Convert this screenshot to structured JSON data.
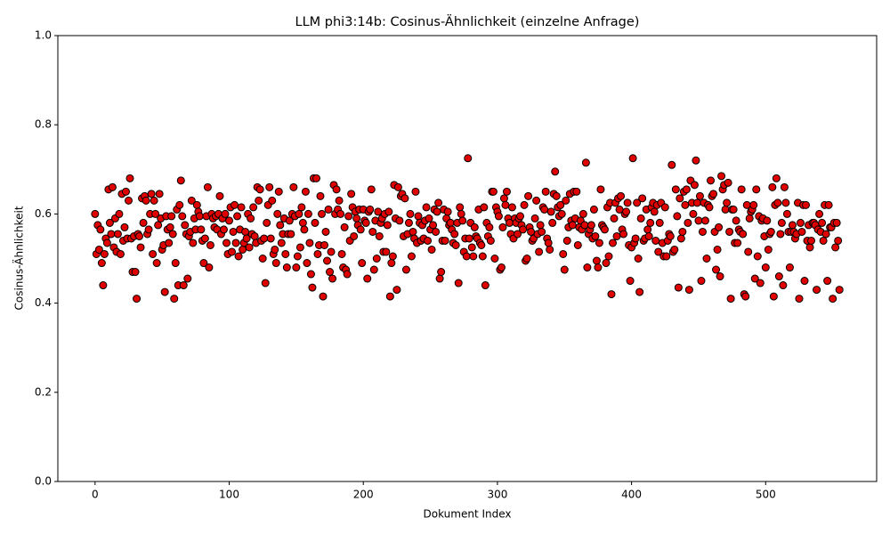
{
  "chart_data": {
    "type": "scatter",
    "title": "LLM phi3:14b: Cosinus-Ähnlichkeit (einzelne Anfrage)",
    "x_label": "Dokument Index",
    "y_label": "Cosinus-Ähnlichkeit",
    "color": "#e00000",
    "edge_color": "#000000",
    "xlim": [
      -27.75,
      582.75
    ],
    "xticks": [
      0,
      100,
      200,
      300,
      400,
      500
    ],
    "ylim": [
      0,
      1
    ],
    "yticks": [
      {
        "value": 0,
        "label": "0.0"
      },
      0.2,
      0.4,
      0.6,
      0.8,
      {
        "value": 1,
        "label": "1.0"
      }
    ],
    "x": [
      0,
      1,
      2,
      3,
      4,
      5,
      6,
      7,
      8,
      9,
      10,
      11,
      12,
      13,
      14,
      15,
      16,
      17,
      18,
      19,
      20,
      21,
      22,
      23,
      24,
      25,
      26,
      27,
      28,
      29,
      30,
      31,
      32,
      33,
      34,
      35,
      36,
      37,
      38,
      39,
      40,
      41,
      42,
      43,
      44,
      45,
      46,
      47,
      48,
      49,
      50,
      51,
      52,
      53,
      54,
      55,
      56,
      57,
      58,
      59,
      60,
      61,
      62,
      63,
      64,
      65,
      66,
      67,
      68,
      69,
      70,
      71,
      72,
      73,
      74,
      75,
      76,
      77,
      78,
      79,
      80,
      81,
      82,
      83,
      84,
      85,
      86,
      87,
      88,
      89,
      90,
      91,
      92,
      93,
      94,
      95,
      96,
      97,
      98,
      99,
      100,
      101,
      102,
      103,
      104,
      105,
      106,
      107,
      108,
      109,
      110,
      111,
      112,
      113,
      114,
      115,
      116,
      117,
      118,
      119,
      120,
      121,
      122,
      123,
      124,
      125,
      126,
      127,
      128,
      129,
      130,
      131,
      132,
      133,
      134,
      135,
      136,
      137,
      138,
      139,
      140,
      141,
      142,
      143,
      144,
      145,
      146,
      147,
      148,
      149,
      150,
      151,
      152,
      153,
      154,
      155,
      156,
      157,
      158,
      159,
      160,
      161,
      162,
      163,
      164,
      165,
      166,
      167,
      168,
      169,
      170,
      171,
      172,
      173,
      174,
      175,
      176,
      177,
      178,
      179,
      180,
      181,
      182,
      183,
      184,
      185,
      186,
      187,
      188,
      189,
      190,
      191,
      192,
      193,
      194,
      195,
      196,
      197,
      198,
      199,
      200,
      201,
      202,
      203,
      204,
      205,
      206,
      207,
      208,
      209,
      210,
      211,
      212,
      213,
      214,
      215,
      216,
      217,
      218,
      219,
      220,
      221,
      222,
      223,
      224,
      225,
      226,
      227,
      228,
      229,
      230,
      231,
      232,
      233,
      234,
      235,
      236,
      237,
      238,
      239,
      240,
      241,
      242,
      243,
      244,
      245,
      246,
      247,
      248,
      249,
      250,
      251,
      252,
      253,
      254,
      255,
      256,
      257,
      258,
      259,
      260,
      261,
      262,
      263,
      264,
      265,
      266,
      267,
      268,
      269,
      270,
      271,
      272,
      273,
      274,
      275,
      276,
      277,
      278,
      279,
      280,
      281,
      282,
      283,
      284,
      285,
      286,
      287,
      288,
      289,
      290,
      291,
      292,
      293,
      294,
      295,
      296,
      297,
      298,
      299,
      300,
      301,
      302,
      303,
      304,
      305,
      306,
      307,
      308,
      309,
      310,
      311,
      312,
      313,
      314,
      315,
      316,
      317,
      318,
      319,
      320,
      321,
      322,
      323,
      324,
      325,
      326,
      327,
      328,
      329,
      330,
      331,
      332,
      333,
      334,
      335,
      336,
      337,
      338,
      339,
      340,
      341,
      342,
      343,
      344,
      345,
      346,
      347,
      348,
      349,
      350,
      351,
      352,
      353,
      354,
      355,
      356,
      357,
      358,
      359,
      360,
      361,
      362,
      363,
      364,
      365,
      366,
      367,
      368,
      369,
      370,
      371,
      372,
      373,
      374,
      375,
      376,
      377,
      378,
      379,
      380,
      381,
      382,
      383,
      384,
      385,
      386,
      387,
      388,
      389,
      390,
      391,
      392,
      393,
      394,
      395,
      396,
      397,
      398,
      399,
      400,
      401,
      402,
      403,
      404,
      405,
      406,
      407,
      408,
      409,
      410,
      411,
      412,
      413,
      414,
      415,
      416,
      417,
      418,
      419,
      420,
      421,
      422,
      423,
      424,
      425,
      426,
      427,
      428,
      429,
      430,
      431,
      432,
      433,
      434,
      435,
      436,
      437,
      438,
      439,
      440,
      441,
      442,
      443,
      444,
      445,
      446,
      447,
      448,
      449,
      450,
      451,
      452,
      453,
      454,
      455,
      456,
      457,
      458,
      459,
      460,
      461,
      462,
      463,
      464,
      465,
      466,
      467,
      468,
      469,
      470,
      471,
      472,
      473,
      474,
      475,
      476,
      477,
      478,
      479,
      480,
      481,
      482,
      483,
      484,
      485,
      486,
      487,
      488,
      489,
      490,
      491,
      492,
      493,
      494,
      495,
      496,
      497,
      498,
      499,
      500,
      501,
      502,
      503,
      504,
      505,
      506,
      507,
      508,
      509,
      510,
      511,
      512,
      513,
      514,
      515,
      516,
      517,
      518,
      519,
      520,
      521,
      522,
      523,
      524,
      525,
      526,
      527,
      528,
      529,
      530,
      531,
      532,
      533,
      534,
      535,
      536,
      537,
      538,
      539,
      540,
      541,
      542,
      543,
      544,
      545,
      546,
      547,
      548,
      549,
      550,
      551,
      552,
      553,
      554,
      555
    ],
    "values": [
      0.6,
      0.51,
      0.575,
      0.52,
      0.565,
      0.49,
      0.44,
      0.51,
      0.545,
      0.535,
      0.655,
      0.58,
      0.555,
      0.66,
      0.525,
      0.59,
      0.515,
      0.555,
      0.6,
      0.51,
      0.645,
      0.54,
      0.57,
      0.65,
      0.545,
      0.63,
      0.68,
      0.545,
      0.47,
      0.55,
      0.47,
      0.41,
      0.555,
      0.55,
      0.525,
      0.635,
      0.58,
      0.64,
      0.63,
      0.555,
      0.565,
      0.6,
      0.645,
      0.51,
      0.63,
      0.6,
      0.49,
      0.575,
      0.645,
      0.59,
      0.52,
      0.53,
      0.425,
      0.595,
      0.565,
      0.535,
      0.57,
      0.595,
      0.555,
      0.41,
      0.49,
      0.61,
      0.44,
      0.62,
      0.675,
      0.595,
      0.44,
      0.575,
      0.555,
      0.455,
      0.55,
      0.56,
      0.63,
      0.535,
      0.59,
      0.565,
      0.62,
      0.605,
      0.595,
      0.565,
      0.54,
      0.49,
      0.545,
      0.595,
      0.66,
      0.48,
      0.53,
      0.6,
      0.59,
      0.57,
      0.595,
      0.565,
      0.6,
      0.64,
      0.555,
      0.59,
      0.565,
      0.6,
      0.535,
      0.51,
      0.585,
      0.615,
      0.515,
      0.56,
      0.62,
      0.535,
      0.595,
      0.505,
      0.565,
      0.615,
      0.52,
      0.535,
      0.56,
      0.545,
      0.6,
      0.525,
      0.59,
      0.555,
      0.615,
      0.55,
      0.535,
      0.66,
      0.63,
      0.655,
      0.54,
      0.5,
      0.545,
      0.445,
      0.58,
      0.62,
      0.66,
      0.545,
      0.63,
      0.51,
      0.52,
      0.49,
      0.6,
      0.65,
      0.575,
      0.535,
      0.555,
      0.59,
      0.51,
      0.48,
      0.555,
      0.585,
      0.555,
      0.6,
      0.66,
      0.595,
      0.48,
      0.505,
      0.6,
      0.525,
      0.615,
      0.58,
      0.565,
      0.65,
      0.49,
      0.6,
      0.535,
      0.465,
      0.435,
      0.68,
      0.58,
      0.68,
      0.51,
      0.53,
      0.64,
      0.6,
      0.415,
      0.53,
      0.56,
      0.495,
      0.61,
      0.47,
      0.515,
      0.455,
      0.665,
      0.6,
      0.655,
      0.61,
      0.63,
      0.6,
      0.51,
      0.48,
      0.57,
      0.475,
      0.465,
      0.595,
      0.54,
      0.645,
      0.615,
      0.55,
      0.605,
      0.59,
      0.575,
      0.61,
      0.565,
      0.49,
      0.61,
      0.585,
      0.58,
      0.455,
      0.605,
      0.61,
      0.655,
      0.56,
      0.475,
      0.585,
      0.5,
      0.605,
      0.55,
      0.58,
      0.59,
      0.515,
      0.6,
      0.515,
      0.575,
      0.605,
      0.415,
      0.49,
      0.505,
      0.665,
      0.59,
      0.43,
      0.66,
      0.585,
      0.64,
      0.645,
      0.55,
      0.635,
      0.475,
      0.555,
      0.58,
      0.6,
      0.505,
      0.56,
      0.545,
      0.65,
      0.535,
      0.595,
      0.58,
      0.54,
      0.575,
      0.545,
      0.585,
      0.615,
      0.54,
      0.59,
      0.565,
      0.52,
      0.575,
      0.61,
      0.56,
      0.605,
      0.625,
      0.455,
      0.47,
      0.54,
      0.61,
      0.54,
      0.59,
      0.605,
      0.575,
      0.58,
      0.565,
      0.535,
      0.555,
      0.53,
      0.58,
      0.445,
      0.615,
      0.6,
      0.585,
      0.515,
      0.545,
      0.505,
      0.725,
      0.545,
      0.58,
      0.525,
      0.505,
      0.57,
      0.55,
      0.545,
      0.61,
      0.535,
      0.53,
      0.505,
      0.615,
      0.44,
      0.58,
      0.55,
      0.57,
      0.54,
      0.65,
      0.65,
      0.5,
      0.615,
      0.605,
      0.595,
      0.475,
      0.48,
      0.57,
      0.635,
      0.62,
      0.65,
      0.59,
      0.58,
      0.555,
      0.615,
      0.545,
      0.59,
      0.58,
      0.555,
      0.59,
      0.595,
      0.575,
      0.565,
      0.62,
      0.495,
      0.5,
      0.64,
      0.57,
      0.56,
      0.54,
      0.545,
      0.59,
      0.63,
      0.555,
      0.515,
      0.575,
      0.56,
      0.615,
      0.61,
      0.65,
      0.545,
      0.535,
      0.52,
      0.605,
      0.58,
      0.645,
      0.695,
      0.64,
      0.615,
      0.595,
      0.62,
      0.6,
      0.51,
      0.475,
      0.63,
      0.54,
      0.57,
      0.645,
      0.585,
      0.575,
      0.65,
      0.59,
      0.65,
      0.53,
      0.57,
      0.585,
      0.565,
      0.6,
      0.575,
      0.715,
      0.48,
      0.555,
      0.565,
      0.575,
      0.545,
      0.61,
      0.55,
      0.495,
      0.48,
      0.535,
      0.655,
      0.575,
      0.57,
      0.565,
      0.49,
      0.615,
      0.505,
      0.625,
      0.42,
      0.535,
      0.59,
      0.625,
      0.55,
      0.635,
      0.61,
      0.64,
      0.565,
      0.555,
      0.6,
      0.605,
      0.625,
      0.53,
      0.45,
      0.525,
      0.725,
      0.535,
      0.545,
      0.625,
      0.5,
      0.425,
      0.59,
      0.635,
      0.54,
      0.545,
      0.61,
      0.565,
      0.55,
      0.58,
      0.615,
      0.625,
      0.605,
      0.54,
      0.62,
      0.515,
      0.58,
      0.625,
      0.535,
      0.505,
      0.615,
      0.505,
      0.54,
      0.555,
      0.55,
      0.71,
      0.515,
      0.52,
      0.655,
      0.595,
      0.435,
      0.635,
      0.545,
      0.56,
      0.65,
      0.62,
      0.655,
      0.58,
      0.43,
      0.675,
      0.625,
      0.6,
      0.665,
      0.72,
      0.625,
      0.585,
      0.64,
      0.45,
      0.56,
      0.625,
      0.585,
      0.5,
      0.62,
      0.615,
      0.675,
      0.64,
      0.645,
      0.56,
      0.475,
      0.52,
      0.57,
      0.46,
      0.685,
      0.655,
      0.665,
      0.61,
      0.625,
      0.67,
      0.56,
      0.41,
      0.61,
      0.61,
      0.535,
      0.585,
      0.535,
      0.565,
      0.56,
      0.655,
      0.555,
      0.42,
      0.415,
      0.62,
      0.515,
      0.59,
      0.605,
      0.61,
      0.62,
      0.455,
      0.655,
      0.505,
      0.595,
      0.445,
      0.585,
      0.59,
      0.55,
      0.48,
      0.585,
      0.52,
      0.555,
      0.56,
      0.66,
      0.415,
      0.62,
      0.68,
      0.625,
      0.46,
      0.555,
      0.58,
      0.44,
      0.66,
      0.625,
      0.6,
      0.56,
      0.48,
      0.56,
      0.575,
      0.56,
      0.545,
      0.555,
      0.625,
      0.41,
      0.58,
      0.56,
      0.62,
      0.45,
      0.62,
      0.54,
      0.575,
      0.525,
      0.54,
      0.58,
      0.58,
      0.575,
      0.43,
      0.565,
      0.6,
      0.56,
      0.58,
      0.54,
      0.62,
      0.555,
      0.45,
      0.62,
      0.57,
      0.57,
      0.41,
      0.58,
      0.525,
      0.58,
      0.54,
      0.43
    ]
  }
}
